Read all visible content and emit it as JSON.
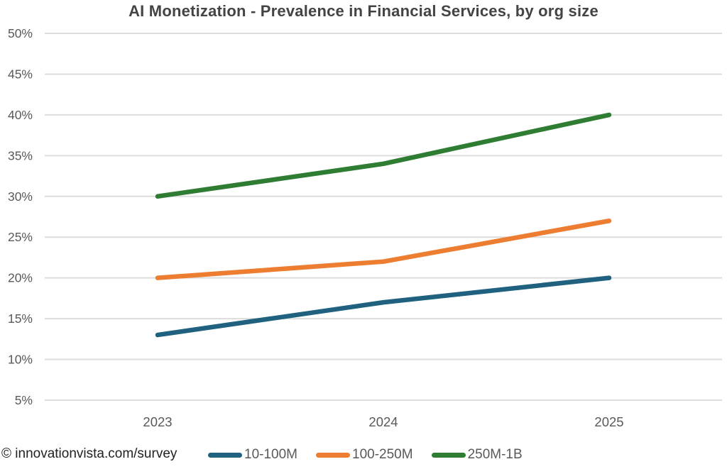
{
  "footer": {
    "source": "© innovationvista.com/survey"
  },
  "chart_data": {
    "type": "line",
    "title": "AI Monetization - Prevalence in Financial Services, by org size",
    "categories": [
      "2023",
      "2024",
      "2025"
    ],
    "series": [
      {
        "name": "10-100M",
        "color": "#20617F",
        "values": [
          13,
          17,
          20
        ]
      },
      {
        "name": "100-250M",
        "color": "#ED7D31",
        "values": [
          20,
          22,
          27
        ]
      },
      {
        "name": "250M-1B",
        "color": "#2E7D32",
        "values": [
          30,
          34,
          40
        ]
      }
    ],
    "xlabel": "",
    "ylabel": "",
    "ylim": [
      5,
      50
    ],
    "ytick_step": 5,
    "ytick_suffix": "%",
    "grid": true,
    "grid_color": "#DCDCDC",
    "tick_label_color": "#595959",
    "title_color": "#444444",
    "legend_position": "bottom"
  }
}
